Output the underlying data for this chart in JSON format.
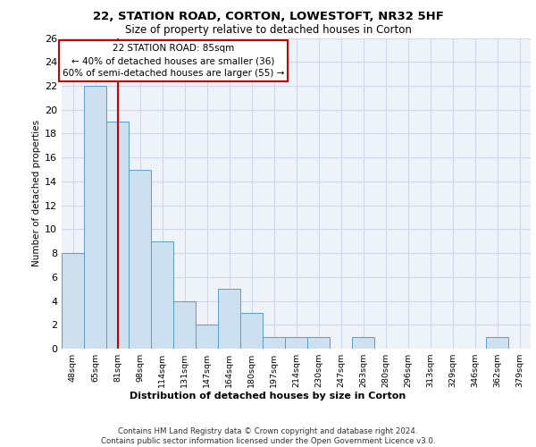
{
  "title1": "22, STATION ROAD, CORTON, LOWESTOFT, NR32 5HF",
  "title2": "Size of property relative to detached houses in Corton",
  "xlabel": "Distribution of detached houses by size in Corton",
  "ylabel": "Number of detached properties",
  "categories": [
    "48sqm",
    "65sqm",
    "81sqm",
    "98sqm",
    "114sqm",
    "131sqm",
    "147sqm",
    "164sqm",
    "180sqm",
    "197sqm",
    "214sqm",
    "230sqm",
    "247sqm",
    "263sqm",
    "280sqm",
    "296sqm",
    "313sqm",
    "329sqm",
    "346sqm",
    "362sqm",
    "379sqm"
  ],
  "values": [
    8,
    22,
    19,
    15,
    9,
    4,
    2,
    5,
    3,
    1,
    1,
    1,
    0,
    1,
    0,
    0,
    0,
    0,
    0,
    1,
    0
  ],
  "bar_color": "#cce0f0",
  "bar_edge_color": "#5a9dc8",
  "red_line_x": 2,
  "annotation_text": "22 STATION ROAD: 85sqm\n← 40% of detached houses are smaller (36)\n60% of semi-detached houses are larger (55) →",
  "annotation_box_color": "#ffffff",
  "annotation_box_edge": "#cc0000",
  "ylim": [
    0,
    26
  ],
  "yticks": [
    0,
    2,
    4,
    6,
    8,
    10,
    12,
    14,
    16,
    18,
    20,
    22,
    24,
    26
  ],
  "footer": "Contains HM Land Registry data © Crown copyright and database right 2024.\nContains public sector information licensed under the Open Government Licence v3.0.",
  "grid_color": "#d0d8e8",
  "background_color": "#eef3fa"
}
